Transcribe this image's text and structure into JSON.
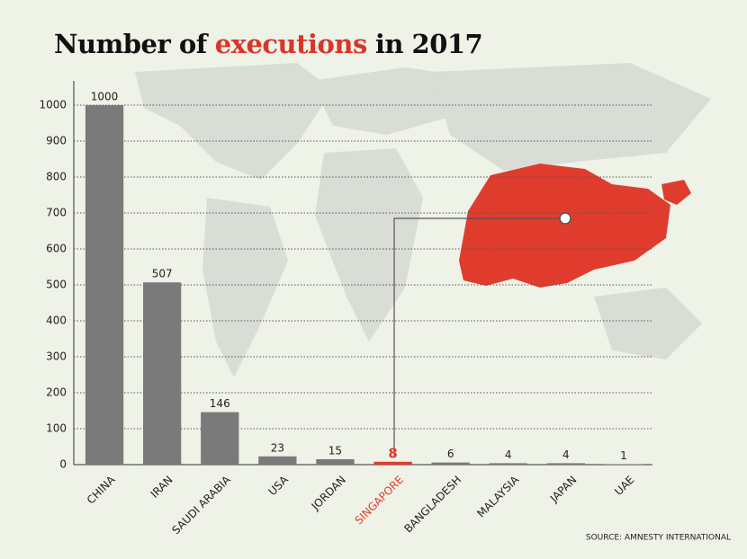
{
  "chart_data": {
    "type": "bar",
    "title": [
      "Number of",
      "executions",
      "in 2017"
    ],
    "title_colors": [
      "#111111",
      "#d9352a",
      "#111111"
    ],
    "categories": [
      "CHINA",
      "IRAN",
      "SAUDI ARABIA",
      "USA",
      "JORDAN",
      "SINGAPORE",
      "BANGLADESH",
      "MALAYSIA",
      "JAPAN",
      "UAE"
    ],
    "values": [
      1000,
      507,
      146,
      23,
      15,
      8,
      6,
      4,
      4,
      1
    ],
    "colors": [
      "#7a7a7a",
      "#7a7a7a",
      "#7a7a7a",
      "#7a7a7a",
      "#7a7a7a",
      "#e03c2e",
      "#7a7a7a",
      "#7a7a7a",
      "#7a7a7a",
      "#7a7a7a"
    ],
    "ylim": [
      0,
      1100
    ],
    "yticks": [
      0,
      100,
      200,
      300,
      400,
      500,
      600,
      700,
      800,
      900,
      1000
    ],
    "grid": true,
    "source": "SOURCE: AMNESTY INTERNATIONAL"
  }
}
